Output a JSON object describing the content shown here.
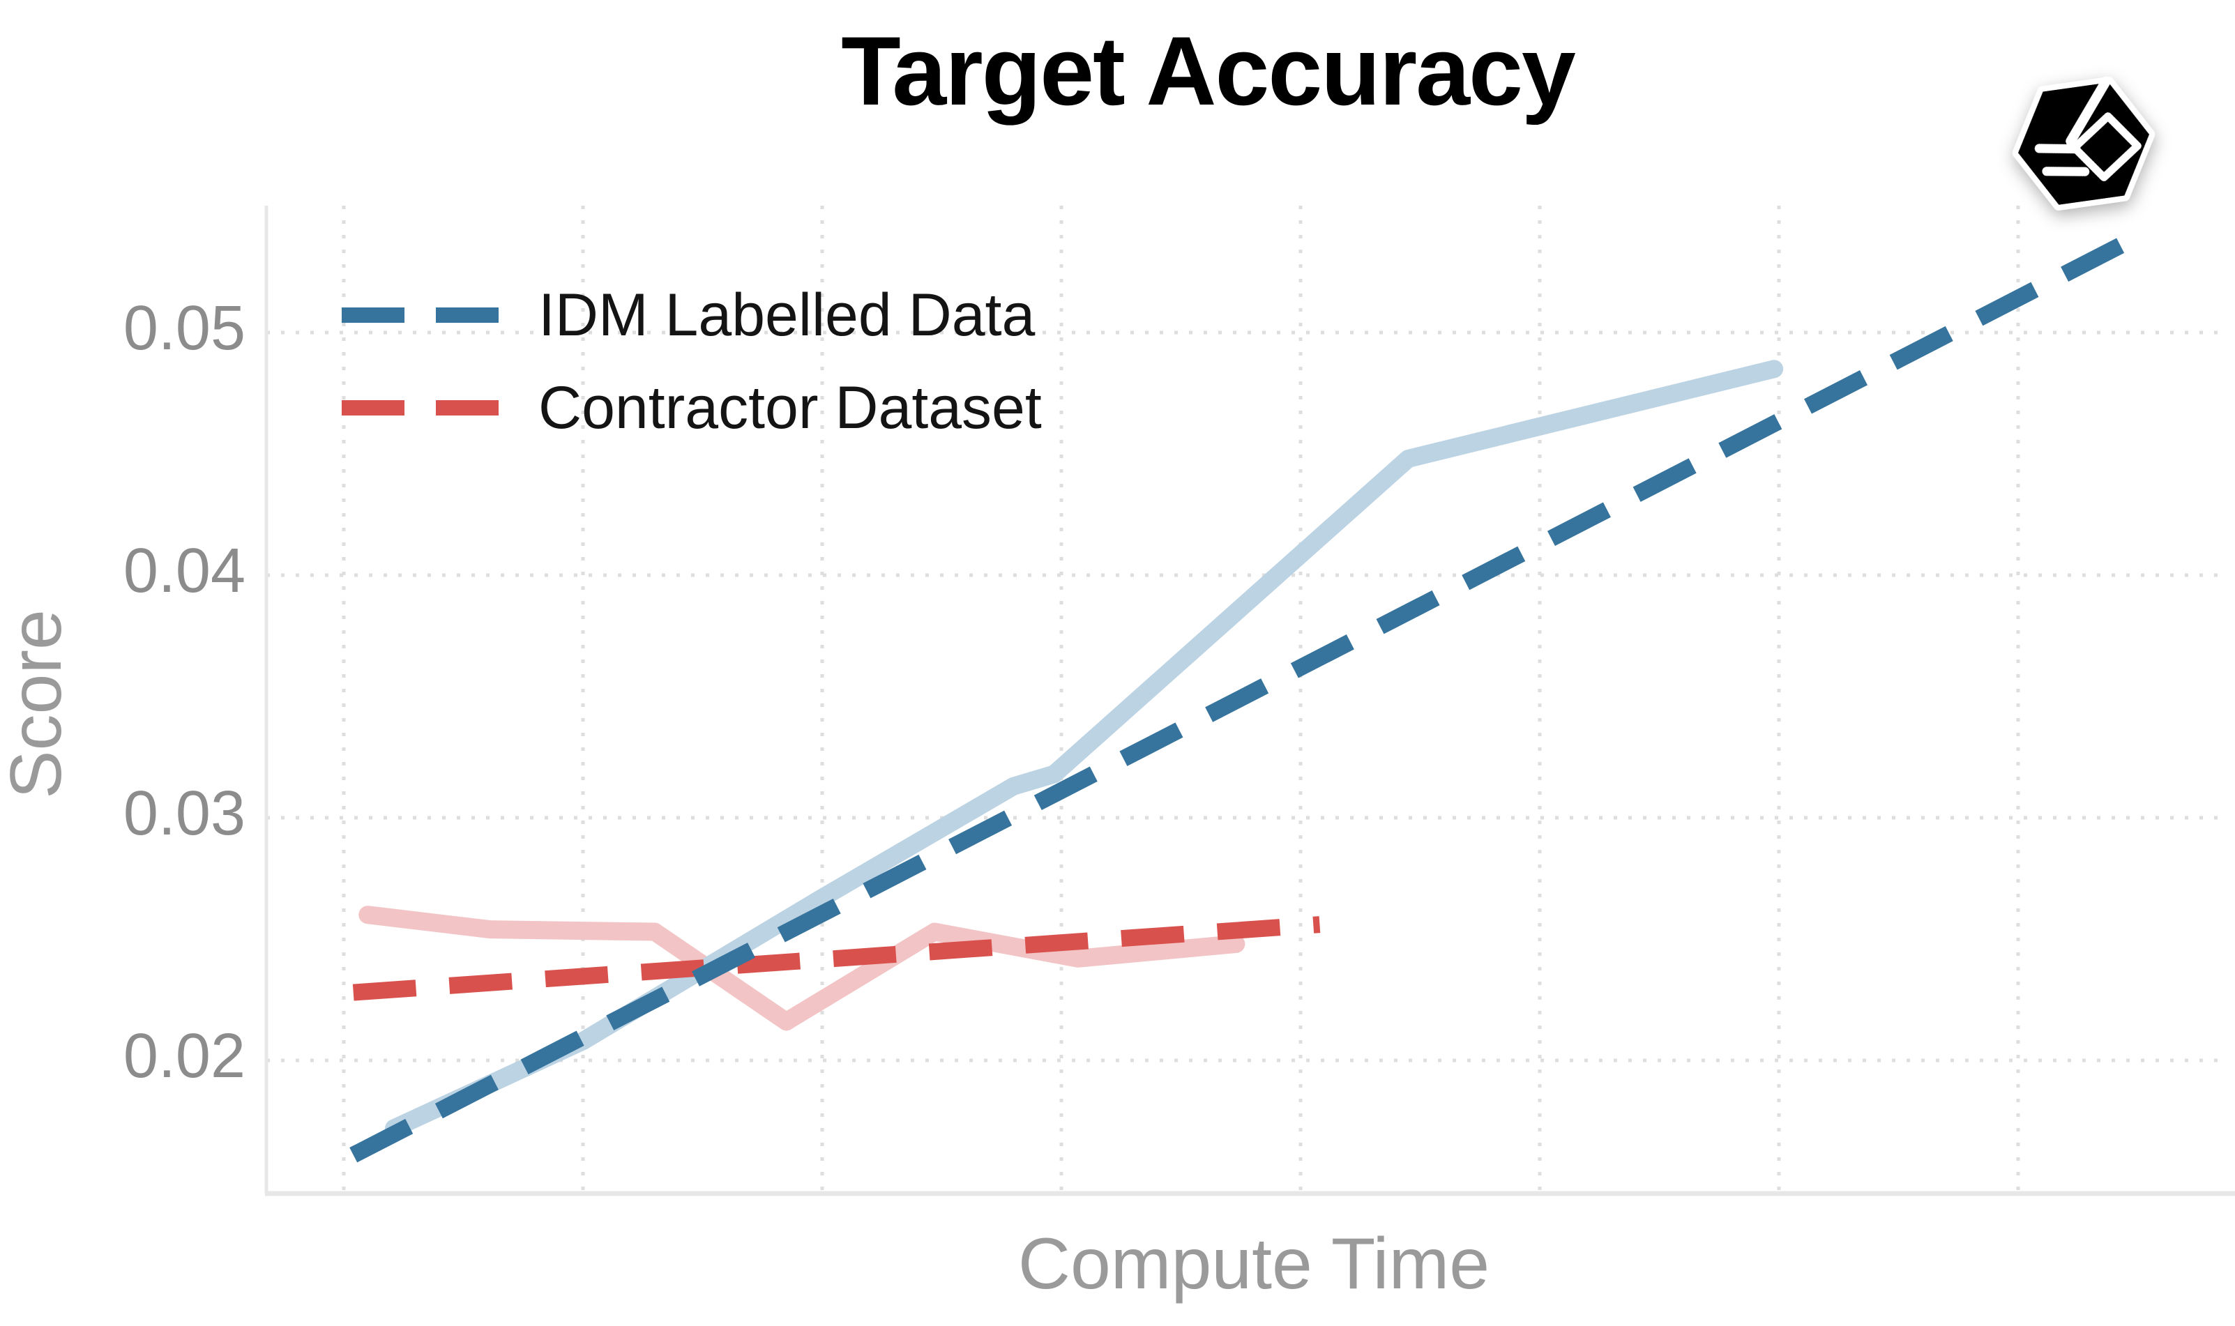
{
  "title": "Target Accuracy",
  "legend": {
    "position": "upper-left",
    "items": [
      {
        "label": "IDM Labelled Data",
        "color": "#36749D",
        "style": "dashed"
      },
      {
        "label": "Contractor Dataset",
        "color": "#D9514D",
        "style": "dashed"
      }
    ]
  },
  "watermark": {
    "name": "hexagon-cube-logo",
    "fill": "#000000",
    "rim": "#FFFFFF"
  },
  "colors": {
    "background": "#FFFFFF",
    "grid": "#DEDEDE",
    "spine": "#E7E7E7",
    "tick_text": "#8C8C8C",
    "axis_label": "#9A9A9A",
    "legend_text": "#141414",
    "title_text": "#000000",
    "idm_trend": "#36749D",
    "contractor_trend": "#D9514D",
    "idm_run": "#BCD3E4",
    "contractor_run": "#F3C4C5"
  },
  "chart_data": {
    "type": "line",
    "title": "Target Accuracy",
    "xlabel": "Compute Time",
    "ylabel": "Score",
    "grid": true,
    "legend_position": "upper left",
    "x_axis": {
      "label": "Compute Time",
      "tick_labels_visible": false,
      "units": "arbitrary compute units (unlabeled axis)",
      "gridlines_u": [
        0,
        1,
        2,
        3,
        4,
        5,
        6,
        7
      ]
    },
    "y_axis": {
      "label": "Score",
      "ticks": [
        0.02,
        0.03,
        0.04,
        0.05
      ],
      "range": [
        0.0145,
        0.0552
      ]
    },
    "series": [
      {
        "name": "Contractor Dataset (run)",
        "slug": "contractor-run",
        "style": "solid",
        "color": "#F3C4C5",
        "points": [
          [
            0.1,
            0.026
          ],
          [
            0.61,
            0.0254
          ],
          [
            1.3,
            0.0253
          ],
          [
            1.85,
            0.0216
          ],
          [
            2.47,
            0.0253
          ],
          [
            3.07,
            0.0242
          ],
          [
            3.73,
            0.0248
          ]
        ]
      },
      {
        "name": "IDM Labelled Data (run)",
        "slug": "idm-run",
        "style": "solid",
        "color": "#BCD3E4",
        "points": [
          [
            0.21,
            0.0172
          ],
          [
            1.0,
            0.0208
          ],
          [
            2.0,
            0.0267
          ],
          [
            2.8,
            0.0313
          ],
          [
            2.97,
            0.0318
          ],
          [
            4.45,
            0.0448
          ],
          [
            5.98,
            0.0485
          ]
        ]
      },
      {
        "name": "Contractor Dataset",
        "slug": "contractor-trend",
        "style": "dashed",
        "color": "#D9514D",
        "points": [
          [
            0.04,
            0.0228
          ],
          [
            4.08,
            0.0256
          ]
        ]
      },
      {
        "name": "IDM Labelled Data",
        "slug": "idm-trend",
        "style": "dashed",
        "color": "#36749D",
        "points": [
          [
            0.04,
            0.0161
          ],
          [
            7.43,
            0.0536
          ]
        ]
      }
    ]
  }
}
